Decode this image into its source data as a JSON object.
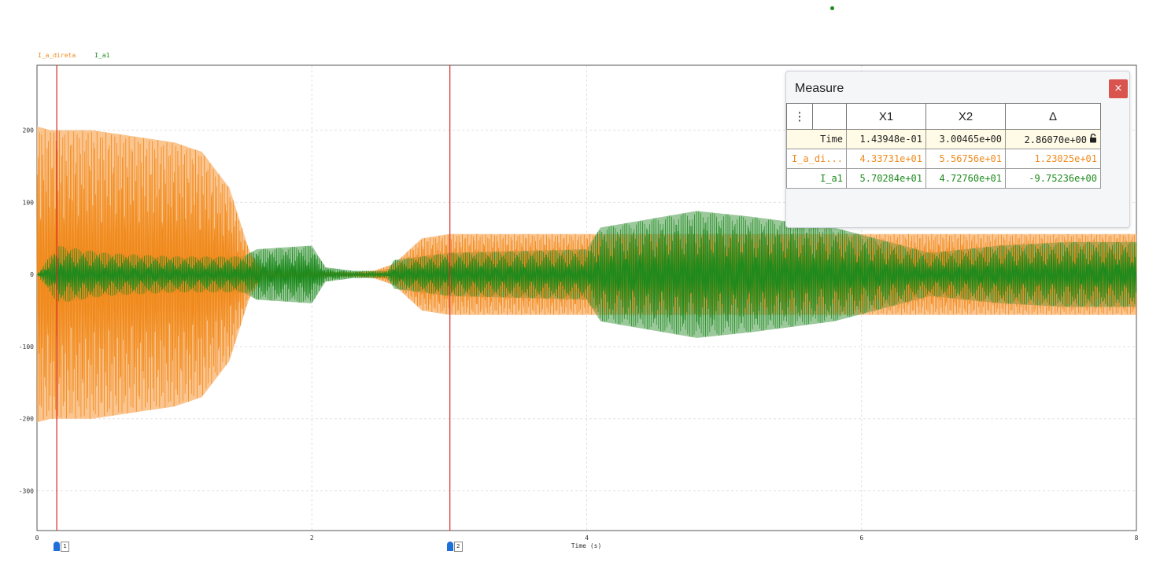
{
  "colors": {
    "ia_direta": "#f08a1c",
    "ia_direta_fill": "#fbbf84",
    "ia1": "#1d8a1d",
    "overlap": "#7a7a0a",
    "cursor_line": "#d62828",
    "cursor_marker": "#1e6fd8",
    "grid": "#e0e0e0"
  },
  "status_dot_color": "#1d8a1d",
  "legend": [
    {
      "label": "I_a_direta",
      "color": "#f08a1c"
    },
    {
      "label": "I_a1",
      "color": "#1d8a1d"
    }
  ],
  "chart_data": {
    "type": "line",
    "xlabel": "Time (s)",
    "ylabel": "",
    "xlim": [
      0,
      8
    ],
    "ylim": [
      -355,
      290
    ],
    "x_ticks": [
      0,
      2,
      4,
      6,
      8
    ],
    "y_ticks": [
      200,
      100,
      0,
      -100,
      -200,
      -300
    ],
    "grid": true,
    "legend_position": "top-left",
    "series": [
      {
        "name": "I_a_direta",
        "envelope_time": [
          0,
          0.1,
          0.4,
          1.0,
          1.2,
          1.4,
          1.55,
          1.65,
          2.3,
          2.45,
          2.6,
          2.8,
          3.0,
          4.0,
          6.0,
          8.0
        ],
        "envelope_amplitude": [
          205,
          200,
          200,
          183,
          170,
          120,
          30,
          5,
          3,
          5,
          15,
          50,
          56,
          56,
          56,
          56
        ]
      },
      {
        "name": "I_a1",
        "envelope_time": [
          0,
          0.15,
          0.5,
          1.0,
          1.5,
          1.6,
          2.0,
          2.1,
          2.3,
          2.55,
          2.6,
          3.0,
          4.0,
          4.1,
          4.8,
          5.2,
          5.8,
          6.0,
          6.5,
          7.0,
          7.5,
          8.0
        ],
        "envelope_amplitude": [
          0,
          40,
          30,
          25,
          25,
          35,
          40,
          10,
          5,
          5,
          20,
          30,
          35,
          65,
          88,
          80,
          65,
          55,
          30,
          40,
          45,
          45
        ]
      }
    ],
    "cursors": [
      {
        "name": "1",
        "time": 0.143948
      },
      {
        "name": "2",
        "time": 3.00465
      }
    ]
  },
  "measure": {
    "title": "Measure",
    "close_label": "×",
    "menu_icon": "⋮",
    "columns": [
      "X1",
      "X2",
      "Δ"
    ],
    "rows": [
      {
        "label": "Time",
        "x1": "1.43948e-01",
        "x2": "3.00465e+00",
        "delta": "2.86070e+00",
        "lock_icon": "unlock-icon"
      },
      {
        "label": "I_a_di...",
        "x1": "4.33731e+01",
        "x2": "5.56756e+01",
        "delta": "1.23025e+01"
      },
      {
        "label": "I_a1",
        "x1": "5.70284e+01",
        "x2": "4.72760e+01",
        "delta": "-9.75236e+00"
      }
    ]
  },
  "cursor_markers": [
    {
      "label": "1"
    },
    {
      "label": "2"
    }
  ]
}
